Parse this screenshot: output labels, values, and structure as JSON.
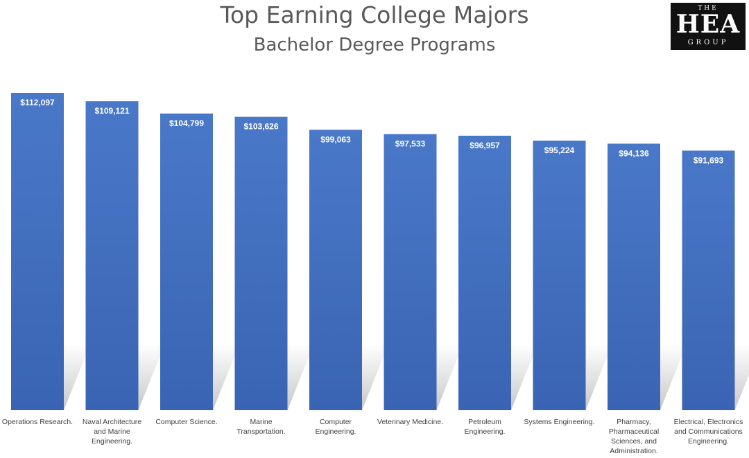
{
  "chart_data": {
    "type": "bar",
    "title": "Top Earning College Majors",
    "subtitle": "Bachelor Degree Programs",
    "categories": [
      "Operations Research.",
      "Naval Architecture and Marine Engineering.",
      "Computer Science.",
      "Marine Transportation.",
      "Computer Engineering.",
      "Veterinary Medicine.",
      "Petroleum Engineering.",
      "Systems Engineering.",
      "Pharmacy, Pharmaceutical Sciences, and Administration.",
      "Electrical, Electronics and Communications Engineering."
    ],
    "category_lines": [
      [
        "Operations Research."
      ],
      [
        "Naval Architecture",
        "and Marine",
        "Engineering."
      ],
      [
        "Computer Science."
      ],
      [
        "Marine",
        "Transportation."
      ],
      [
        "Computer",
        "Engineering."
      ],
      [
        "Veterinary Medicine."
      ],
      [
        "Petroleum",
        "Engineering."
      ],
      [
        "Systems Engineering."
      ],
      [
        "Pharmacy,",
        "Pharmaceutical",
        "Sciences, and",
        "Administration."
      ],
      [
        "Electrical, Electronics",
        "and Communications",
        "Engineering."
      ]
    ],
    "values": [
      112097,
      109121,
      104799,
      103626,
      99063,
      97533,
      96957,
      95224,
      94136,
      91693
    ],
    "data_labels": [
      "$112,097",
      "$109,121",
      "$104,799",
      "$103,626",
      "$99,063",
      "$97,533",
      "$96,957",
      "$95,224",
      "$94,136",
      "$91,693"
    ],
    "ylim": [
      0,
      112097
    ],
    "grid": false,
    "legend": "none",
    "bar_color": "#4472C4"
  },
  "logo": {
    "top": "THE",
    "middle": "HEA",
    "bottom": "GROUP"
  }
}
